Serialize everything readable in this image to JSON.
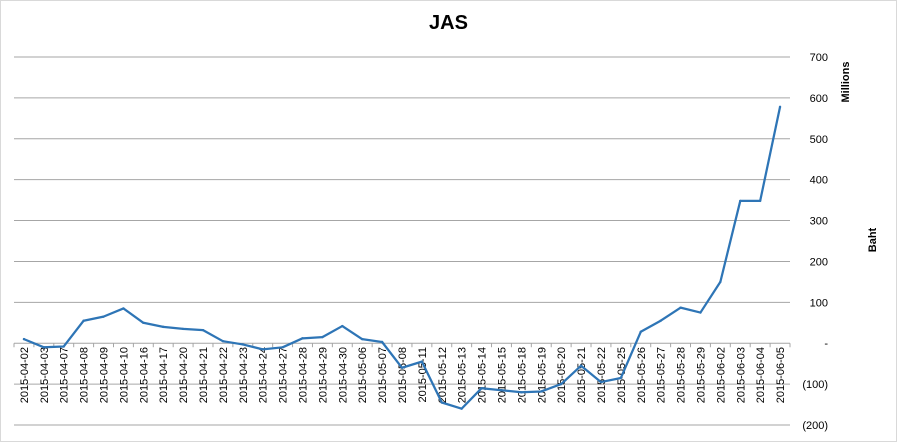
{
  "chart_data": {
    "type": "line",
    "title": "JAS",
    "xlabel": "",
    "ylabel": "Baht",
    "y_units_label": "Millions",
    "y_axis_side": "right",
    "ylim": [
      -200,
      700
    ],
    "y_ticks": [
      700,
      600,
      500,
      400,
      300,
      200,
      100,
      0,
      -100,
      -200
    ],
    "y_tick_labels": [
      "700",
      "600",
      "500",
      "400",
      "300",
      "200",
      "100",
      "-",
      "(100)",
      "(200)"
    ],
    "grid": true,
    "legend": "none",
    "line_color": "#2e75b6",
    "x": [
      "2015-04-02",
      "2015-04-03",
      "2015-04-07",
      "2015-04-08",
      "2015-04-09",
      "2015-04-10",
      "2015-04-16",
      "2015-04-17",
      "2015-04-20",
      "2015-04-21",
      "2015-04-22",
      "2015-04-23",
      "2015-04-24",
      "2015-04-27",
      "2015-04-28",
      "2015-04-29",
      "2015-04-30",
      "2015-05-06",
      "2015-05-07",
      "2015-05-08",
      "2015-05-11",
      "2015-05-12",
      "2015-05-13",
      "2015-05-14",
      "2015-05-15",
      "2015-05-18",
      "2015-05-19",
      "2015-05-20",
      "2015-05-21",
      "2015-05-22",
      "2015-05-25",
      "2015-05-26",
      "2015-05-27",
      "2015-05-28",
      "2015-05-29",
      "2015-06-02",
      "2015-06-03",
      "2015-06-04",
      "2015-06-05"
    ],
    "series": [
      {
        "values": [
          10,
          -10,
          -8,
          55,
          65,
          85,
          50,
          40,
          35,
          32,
          5,
          -3,
          -15,
          -10,
          12,
          15,
          42,
          10,
          3,
          -60,
          -45,
          -145,
          -160,
          -110,
          -115,
          -120,
          -118,
          -100,
          -55,
          -95,
          -85,
          28,
          55,
          87,
          75,
          150,
          348,
          348,
          578
        ]
      }
    ]
  }
}
